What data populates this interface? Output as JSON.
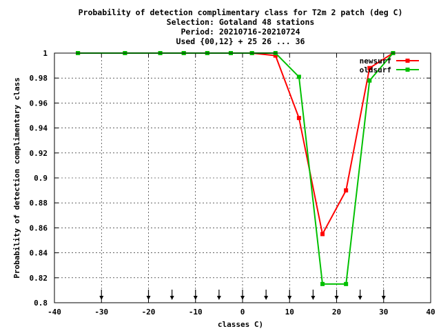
{
  "title_lines": [
    "Probability of detection complimentary class  for T2m 2 patch (deg C)",
    "Selection: Gotaland     48 stations",
    "Period: 20210716-20210724",
    "Used {00,12} + 25 26 ... 36"
  ],
  "chart_data": {
    "type": "line",
    "xlabel": "classes C)",
    "ylabel": "Probability of detection complimentary class",
    "xlim": [
      -40,
      40
    ],
    "ylim": [
      0.8,
      1.0
    ],
    "xticks": [
      -40,
      -30,
      -20,
      -10,
      0,
      10,
      20,
      30,
      40
    ],
    "yticks": [
      0.8,
      0.82,
      0.84,
      0.86,
      0.88,
      0.9,
      0.92,
      0.94,
      0.96,
      0.98,
      1.0
    ],
    "ytick_labels": [
      "0.8",
      "0.82",
      "0.84",
      "0.86",
      "0.88",
      "0.9",
      "0.92",
      "0.94",
      "0.96",
      "0.98",
      "1"
    ],
    "grid": true,
    "legend_position": "top-right",
    "series": [
      {
        "name": "newsurf",
        "color": "#ff0000",
        "x": [
          -35,
          -25,
          -17.5,
          -12.5,
          -7.5,
          -2.5,
          2,
          7,
          12,
          17,
          22,
          27,
          32
        ],
        "y": [
          1.0,
          1.0,
          1.0,
          1.0,
          1.0,
          1.0,
          1.0,
          0.998,
          0.948,
          0.855,
          0.89,
          0.988,
          1.0
        ]
      },
      {
        "name": "oldsurf",
        "color": "#00c000",
        "x": [
          -35,
          -25,
          -17.5,
          -12.5,
          -7.5,
          -2.5,
          2,
          7,
          12,
          17,
          22,
          27,
          32
        ],
        "y": [
          1.0,
          1.0,
          1.0,
          1.0,
          1.0,
          1.0,
          1.0,
          1.0,
          0.981,
          0.815,
          0.815,
          0.978,
          1.0
        ]
      }
    ],
    "arrow_markers_x": [
      -30,
      -20,
      -15,
      -10,
      -5,
      0,
      5,
      10,
      15,
      20,
      25,
      30
    ]
  }
}
